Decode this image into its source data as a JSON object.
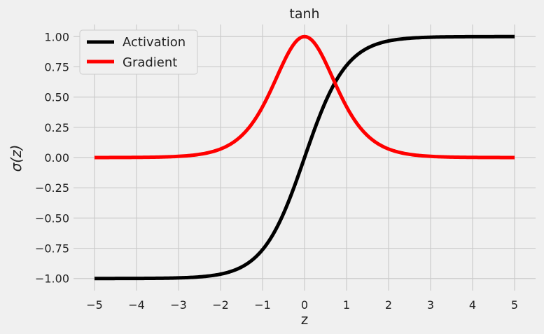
{
  "chart_data": {
    "type": "line",
    "title": "tanh",
    "xlabel": "z",
    "ylabel_text": "σ(z)",
    "xlim": [
      -5.5,
      5.5
    ],
    "ylim": [
      -1.1,
      1.1
    ],
    "xticks": [
      -5,
      -4,
      -3,
      -2,
      -1,
      0,
      1,
      2,
      3,
      4,
      5
    ],
    "xtick_labels": [
      "−5",
      "−4",
      "−3",
      "−2",
      "−1",
      "0",
      "1",
      "2",
      "3",
      "4",
      "5"
    ],
    "yticks": [
      -1.0,
      -0.75,
      -0.5,
      -0.25,
      0.0,
      0.25,
      0.5,
      0.75,
      1.0
    ],
    "ytick_labels": [
      "−1.00",
      "−0.75",
      "−0.50",
      "−0.25",
      "0.00",
      "0.25",
      "0.50",
      "0.75",
      "1.00"
    ],
    "grid": true,
    "legend_position": "top-left",
    "x": [
      -5,
      -4.5,
      -4,
      -3.5,
      -3,
      -2.5,
      -2,
      -1.75,
      -1.5,
      -1.25,
      -1,
      -0.75,
      -0.5,
      -0.25,
      0,
      0.25,
      0.5,
      0.75,
      1,
      1.25,
      1.5,
      1.75,
      2,
      2.5,
      3,
      3.5,
      4,
      4.5,
      5
    ],
    "series": [
      {
        "name": "Activation",
        "color": "#000000",
        "values": [
          -0.9999,
          -0.9998,
          -0.9993,
          -0.9982,
          -0.9951,
          -0.9866,
          -0.964,
          -0.9414,
          -0.9051,
          -0.8483,
          -0.7616,
          -0.6351,
          -0.4621,
          -0.2449,
          0.0,
          0.2449,
          0.4621,
          0.6351,
          0.7616,
          0.8483,
          0.9051,
          0.9414,
          0.964,
          0.9866,
          0.9951,
          0.9982,
          0.9993,
          0.9998,
          0.9999
        ]
      },
      {
        "name": "Gradient",
        "color": "#ff0000",
        "values": [
          0.0002,
          0.0005,
          0.0013,
          0.0036,
          0.0099,
          0.0266,
          0.0707,
          0.1138,
          0.1807,
          0.2805,
          0.42,
          0.5966,
          0.7864,
          0.94,
          1.0,
          0.94,
          0.7864,
          0.5966,
          0.42,
          0.2805,
          0.1807,
          0.1138,
          0.0707,
          0.0266,
          0.0099,
          0.0036,
          0.0013,
          0.0005,
          0.0002
        ]
      }
    ]
  }
}
